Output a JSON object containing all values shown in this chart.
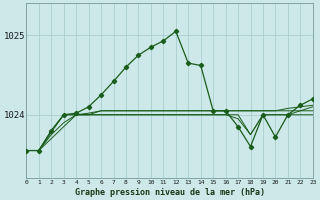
{
  "title": "Graphe pression niveau de la mer (hPa)",
  "bg_color": "#cce8e8",
  "grid_color": "#aacece",
  "line_color": "#1a5c1a",
  "xlim": [
    0,
    23
  ],
  "ylim": [
    1023.2,
    1025.4
  ],
  "yticks": [
    1024,
    1025
  ],
  "xticks": [
    0,
    1,
    2,
    3,
    4,
    5,
    6,
    7,
    8,
    9,
    10,
    11,
    12,
    13,
    14,
    15,
    16,
    17,
    18,
    19,
    20,
    21,
    22,
    23
  ],
  "flat_lines": [
    [
      1023.55,
      1023.55,
      1023.7,
      1023.85,
      1024.0,
      1024.0,
      1024.05,
      1024.05,
      1024.05,
      1024.05,
      1024.05,
      1024.05,
      1024.05,
      1024.05,
      1024.05,
      1024.05,
      1024.05,
      1024.05,
      1024.05,
      1024.05,
      1024.05,
      1024.05,
      1024.05,
      1024.05
    ],
    [
      1023.55,
      1023.55,
      1023.75,
      1023.9,
      1024.0,
      1024.02,
      1024.05,
      1024.05,
      1024.05,
      1024.05,
      1024.05,
      1024.05,
      1024.05,
      1024.05,
      1024.05,
      1024.05,
      1024.05,
      1024.05,
      1024.05,
      1024.05,
      1024.05,
      1024.08,
      1024.1,
      1024.12
    ],
    [
      1023.55,
      1023.55,
      1023.8,
      1024.0,
      1024.0,
      1024.0,
      1024.0,
      1024.0,
      1024.0,
      1024.0,
      1024.0,
      1024.0,
      1024.0,
      1024.0,
      1024.0,
      1024.0,
      1024.0,
      1024.0,
      1023.75,
      1024.0,
      1024.0,
      1024.0,
      1024.0,
      1024.0
    ],
    [
      1023.55,
      1023.55,
      1023.78,
      1024.0,
      1024.0,
      1024.0,
      1024.0,
      1024.0,
      1024.0,
      1024.0,
      1024.0,
      1024.0,
      1024.0,
      1024.0,
      1024.0,
      1024.0,
      1024.0,
      1023.95,
      1023.75,
      1024.0,
      1024.0,
      1024.0,
      1024.05,
      1024.1
    ]
  ],
  "main_x": [
    0,
    1,
    2,
    3,
    4,
    5,
    6,
    7,
    8,
    9,
    10,
    11,
    12,
    13,
    14,
    15,
    16,
    17,
    18,
    19,
    20,
    21,
    22,
    23
  ],
  "main_y": [
    1023.55,
    1023.55,
    1023.8,
    1024.0,
    1024.02,
    1024.1,
    1024.25,
    1024.42,
    1024.6,
    1024.75,
    1024.85,
    1024.93,
    1025.05,
    1024.65,
    1024.62,
    1024.05,
    1024.05,
    1023.85,
    1023.6,
    1024.0,
    1023.72,
    1024.0,
    1024.12,
    1024.2
  ]
}
